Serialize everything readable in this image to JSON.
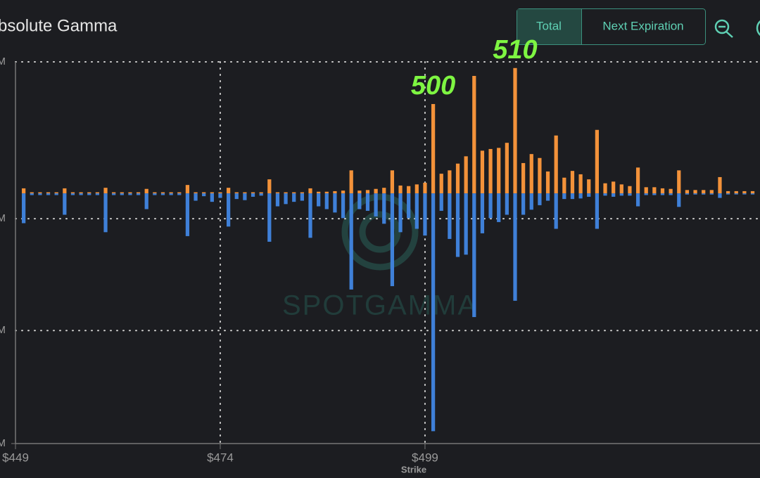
{
  "chart_data": {
    "type": "bar",
    "title": "bsolute Gamma",
    "buttons": [
      "Total",
      "Next Expiration"
    ],
    "watermark": "SPOTGAMMA",
    "x_label": "Strike",
    "x": [
      450,
      451,
      452,
      453,
      454,
      455,
      456,
      457,
      458,
      459,
      460,
      461,
      462,
      463,
      464,
      465,
      466,
      467,
      468,
      469,
      470,
      471,
      472,
      473,
      474,
      475,
      476,
      477,
      478,
      479,
      480,
      481,
      482,
      483,
      484,
      485,
      486,
      487,
      488,
      489,
      490,
      491,
      492,
      493,
      494,
      495,
      496,
      497,
      498,
      499,
      500,
      501,
      502,
      503,
      504,
      505,
      506,
      507,
      508,
      509,
      510,
      511,
      512,
      513,
      514,
      515,
      516,
      517,
      518,
      519,
      520,
      521,
      522,
      523,
      524,
      525,
      526,
      527,
      528,
      529,
      530,
      531,
      532,
      533,
      534,
      535,
      536,
      537,
      538,
      539
    ],
    "series": [
      {
        "color": "#f3923a",
        "values": [
          0.09,
          0.02,
          0.02,
          0.02,
          0.02,
          0.09,
          0.02,
          0.02,
          0.02,
          0.02,
          0.1,
          0.02,
          0.02,
          0.02,
          0.02,
          0.08,
          0.02,
          0.02,
          0.02,
          0.02,
          0.15,
          0.02,
          0.02,
          0.02,
          0.02,
          0.1,
          0.02,
          0.02,
          0.02,
          0.02,
          0.25,
          0.02,
          0.02,
          0.02,
          0.02,
          0.09,
          0.03,
          0.03,
          0.04,
          0.05,
          0.41,
          0.05,
          0.06,
          0.08,
          0.1,
          0.41,
          0.14,
          0.13,
          0.16,
          0.19,
          1.59,
          0.35,
          0.41,
          0.53,
          0.66,
          2.09,
          0.76,
          0.79,
          0.81,
          0.9,
          2.23,
          0.54,
          0.7,
          0.63,
          0.39,
          1.03,
          0.28,
          0.4,
          0.34,
          0.25,
          1.13,
          0.18,
          0.21,
          0.16,
          0.13,
          0.46,
          0.11,
          0.11,
          0.09,
          0.08,
          0.41,
          0.06,
          0.06,
          0.06,
          0.06,
          0.29,
          0.04,
          0.04,
          0.04,
          0.04
        ]
      },
      {
        "color": "#3f80d8",
        "values": [
          -0.53,
          -0.03,
          -0.03,
          -0.03,
          -0.03,
          -0.38,
          -0.03,
          -0.03,
          -0.03,
          -0.03,
          -0.69,
          -0.03,
          -0.03,
          -0.03,
          -0.03,
          -0.28,
          -0.03,
          -0.03,
          -0.03,
          -0.03,
          -0.76,
          -0.13,
          -0.05,
          -0.15,
          -0.08,
          -0.59,
          -0.1,
          -0.12,
          -0.06,
          -0.04,
          -0.86,
          -0.23,
          -0.19,
          -0.15,
          -0.13,
          -0.79,
          -0.23,
          -0.28,
          -0.34,
          -0.44,
          -1.71,
          -0.28,
          -0.31,
          -0.41,
          -0.54,
          -1.65,
          -0.69,
          -0.44,
          -0.63,
          -0.75,
          -4.23,
          -0.31,
          -0.81,
          -1.13,
          -1.09,
          -2.2,
          -0.71,
          -0.44,
          -0.51,
          -0.38,
          -1.91,
          -0.38,
          -0.29,
          -0.21,
          -0.13,
          -0.63,
          -0.1,
          -0.1,
          -0.09,
          -0.06,
          -0.63,
          -0.04,
          -0.06,
          -0.04,
          -0.04,
          -0.23,
          -0.03,
          -0.03,
          -0.03,
          -0.03,
          -0.24,
          -0.02,
          -0.02,
          -0.02,
          -0.02,
          -0.08,
          -0.01,
          -0.01,
          -0.01,
          -0.01
        ]
      }
    ],
    "annotations": [
      {
        "text": "500",
        "x": 500
      },
      {
        "text": "510",
        "x": 510
      }
    ],
    "annotation_color": "#7ef542",
    "xlim": [
      449,
      539.9
    ],
    "xticks": [
      {
        "value": 449,
        "label": "$449"
      },
      {
        "value": 474,
        "label": "$474"
      },
      {
        "value": 499,
        "label": "$499"
      }
    ],
    "ylim": [
      -4.45,
      2.34
    ],
    "yticks": [
      {
        "value": 2.34,
        "label": "M"
      },
      {
        "value": -0.45,
        "label": "M"
      },
      {
        "value": -2.44,
        "label": "M"
      },
      {
        "value": -4.45,
        "label": "M"
      }
    ],
    "grid": true
  }
}
